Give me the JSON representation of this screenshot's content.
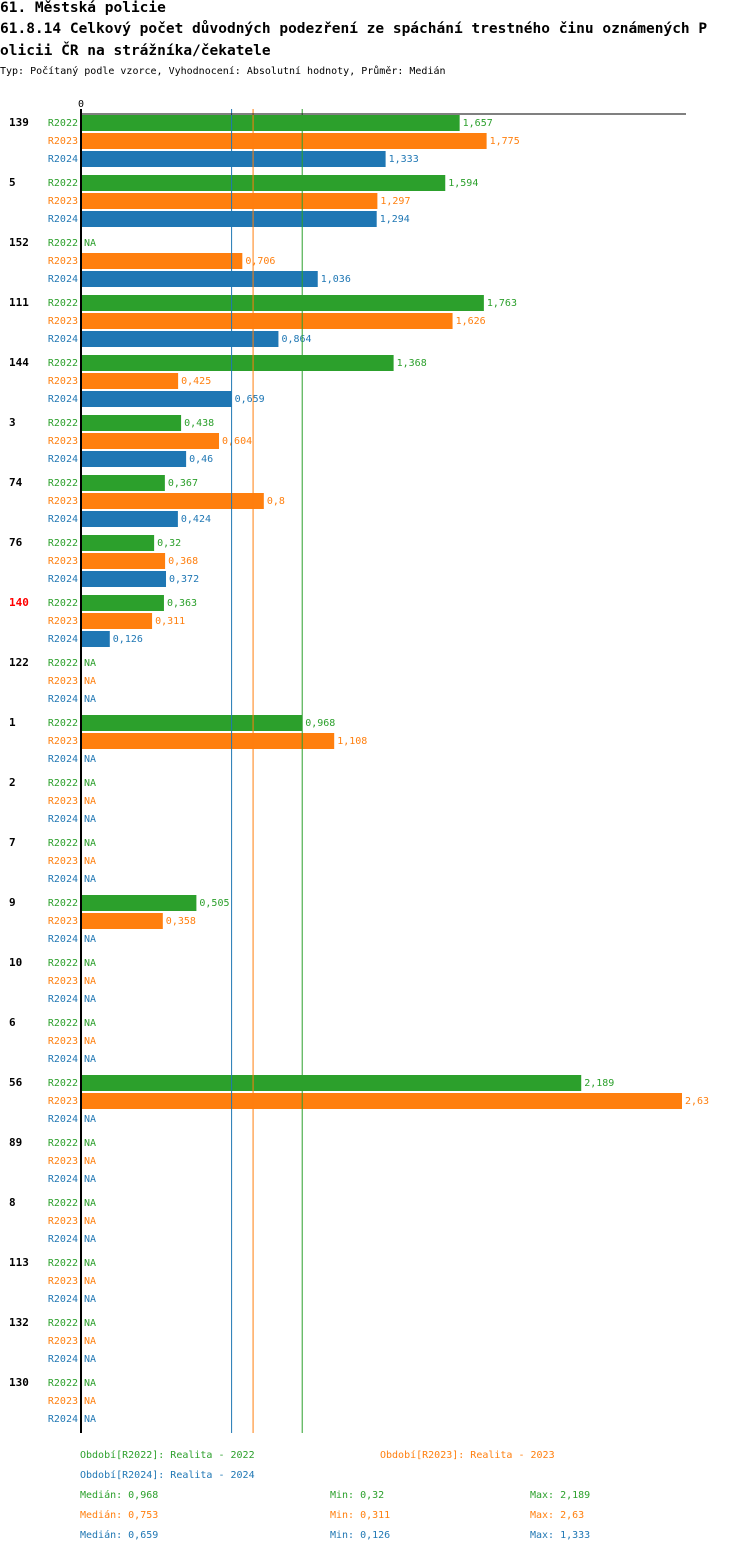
{
  "header": {
    "title_line1": "61. Městská policie",
    "title_line2": "61.8.14 Celkový počet důvodných podezření ze spáchání trestného činu oznámených P",
    "title_line3": "olicii ČR na strážníka/čekatele",
    "subtitle": "Typ: Počítaný podle vzorce, Vyhodnocení: Absolutní hodnoty, Průměr: Medián"
  },
  "colors": {
    "R2022": "#2ca02c",
    "R2023": "#ff7f0e",
    "R2024": "#1f77b4",
    "highlight": "#ff0000",
    "axis": "#000000"
  },
  "chart_data": {
    "type": "bar",
    "orientation": "horizontal",
    "axis_zero_label": "0",
    "xlim": [
      0,
      2.63
    ],
    "series_names": [
      "R2022",
      "R2023",
      "R2024"
    ],
    "na_label": "NA",
    "groups": [
      {
        "label": "139",
        "highlight": false,
        "values": [
          1.657,
          1.775,
          1.333
        ],
        "labels": [
          "1,657",
          "1,775",
          "1,333"
        ]
      },
      {
        "label": "5",
        "highlight": false,
        "values": [
          1.594,
          1.297,
          1.294
        ],
        "labels": [
          "1,594",
          "1,297",
          "1,294"
        ]
      },
      {
        "label": "152",
        "highlight": false,
        "values": [
          null,
          0.706,
          1.036
        ],
        "labels": [
          "NA",
          "0,706",
          "1,036"
        ]
      },
      {
        "label": "111",
        "highlight": false,
        "values": [
          1.763,
          1.626,
          0.864
        ],
        "labels": [
          "1,763",
          "1,626",
          "0,864"
        ]
      },
      {
        "label": "144",
        "highlight": false,
        "values": [
          1.368,
          0.425,
          0.659
        ],
        "labels": [
          "1,368",
          "0,425",
          "0,659"
        ]
      },
      {
        "label": "3",
        "highlight": false,
        "values": [
          0.438,
          0.604,
          0.46
        ],
        "labels": [
          "0,438",
          "0,604",
          "0,46"
        ]
      },
      {
        "label": "74",
        "highlight": false,
        "values": [
          0.367,
          0.8,
          0.424
        ],
        "labels": [
          "0,367",
          "0,8",
          "0,424"
        ]
      },
      {
        "label": "76",
        "highlight": false,
        "values": [
          0.32,
          0.368,
          0.372
        ],
        "labels": [
          "0,32",
          "0,368",
          "0,372"
        ]
      },
      {
        "label": "140",
        "highlight": true,
        "values": [
          0.363,
          0.311,
          0.126
        ],
        "labels": [
          "0,363",
          "0,311",
          "0,126"
        ]
      },
      {
        "label": "122",
        "highlight": false,
        "values": [
          null,
          null,
          null
        ],
        "labels": [
          "NA",
          "NA",
          "NA"
        ]
      },
      {
        "label": "1",
        "highlight": false,
        "values": [
          0.968,
          1.108,
          null
        ],
        "labels": [
          "0,968",
          "1,108",
          "NA"
        ]
      },
      {
        "label": "2",
        "highlight": false,
        "values": [
          null,
          null,
          null
        ],
        "labels": [
          "NA",
          "NA",
          "NA"
        ]
      },
      {
        "label": "7",
        "highlight": false,
        "values": [
          null,
          null,
          null
        ],
        "labels": [
          "NA",
          "NA",
          "NA"
        ]
      },
      {
        "label": "9",
        "highlight": false,
        "values": [
          0.505,
          0.358,
          null
        ],
        "labels": [
          "0,505",
          "0,358",
          "NA"
        ]
      },
      {
        "label": "10",
        "highlight": false,
        "values": [
          null,
          null,
          null
        ],
        "labels": [
          "NA",
          "NA",
          "NA"
        ]
      },
      {
        "label": "6",
        "highlight": false,
        "values": [
          null,
          null,
          null
        ],
        "labels": [
          "NA",
          "NA",
          "NA"
        ]
      },
      {
        "label": "56",
        "highlight": false,
        "values": [
          2.189,
          2.63,
          null
        ],
        "labels": [
          "2,189",
          "2,63",
          "NA"
        ]
      },
      {
        "label": "89",
        "highlight": false,
        "values": [
          null,
          null,
          null
        ],
        "labels": [
          "NA",
          "NA",
          "NA"
        ]
      },
      {
        "label": "8",
        "highlight": false,
        "values": [
          null,
          null,
          null
        ],
        "labels": [
          "NA",
          "NA",
          "NA"
        ]
      },
      {
        "label": "113",
        "highlight": false,
        "values": [
          null,
          null,
          null
        ],
        "labels": [
          "NA",
          "NA",
          "NA"
        ]
      },
      {
        "label": "132",
        "highlight": false,
        "values": [
          null,
          null,
          null
        ],
        "labels": [
          "NA",
          "NA",
          "NA"
        ]
      },
      {
        "label": "130",
        "highlight": false,
        "values": [
          null,
          null,
          null
        ],
        "labels": [
          "NA",
          "NA",
          "NA"
        ]
      }
    ],
    "median_lines": [
      {
        "series": "R2024",
        "value": 0.659
      },
      {
        "series": "R2023",
        "value": 0.753
      },
      {
        "series": "R2022",
        "value": 0.968
      }
    ]
  },
  "legend": {
    "periods": [
      {
        "series": "R2022",
        "text": "Období[R2022]: Realita - 2022"
      },
      {
        "series": "R2023",
        "text": "Období[R2023]: Realita - 2023"
      },
      {
        "series": "R2024",
        "text": "Období[R2024]: Realita - 2024"
      }
    ],
    "stats": [
      {
        "series": "R2022",
        "median": "Medián: 0,968",
        "min": "Min: 0,32",
        "max": "Max: 2,189"
      },
      {
        "series": "R2023",
        "median": "Medián: 0,753",
        "min": "Min: 0,311",
        "max": "Max: 2,63"
      },
      {
        "series": "R2024",
        "median": "Medián: 0,659",
        "min": "Min: 0,126",
        "max": "Max: 1,333"
      }
    ]
  }
}
